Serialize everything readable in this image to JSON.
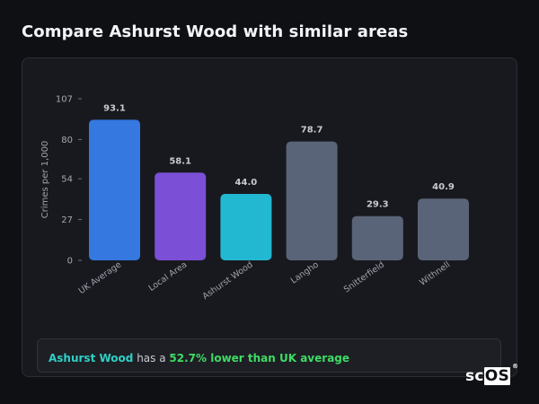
{
  "page": {
    "title": "Compare Ashurst Wood with similar areas"
  },
  "chart_data": {
    "type": "bar",
    "ylabel": "Crimes per 1,000",
    "xlabel": "",
    "ylim": [
      0,
      107
    ],
    "yticks": [
      0,
      27,
      54,
      80,
      107
    ],
    "categories": [
      "UK Average",
      "Local Area",
      "Ashurst Wood",
      "Langho",
      "Snitterfield",
      "Withnell"
    ],
    "values": [
      93.1,
      58.1,
      44.0,
      78.7,
      29.3,
      40.9
    ],
    "value_labels": [
      "93.1",
      "58.1",
      "44.0",
      "78.7",
      "29.3",
      "40.9"
    ],
    "colors": [
      "#3478e0",
      "#7b4fd6",
      "#22b8d1",
      "#5a6478",
      "#5a6478",
      "#5a6478"
    ]
  },
  "summary": {
    "place": "Ashurst Wood",
    "middle": " has a ",
    "delta": "52.7% lower than UK average"
  },
  "logo": {
    "text_sc": "sc",
    "text_os": "OS",
    "reg": "®"
  }
}
